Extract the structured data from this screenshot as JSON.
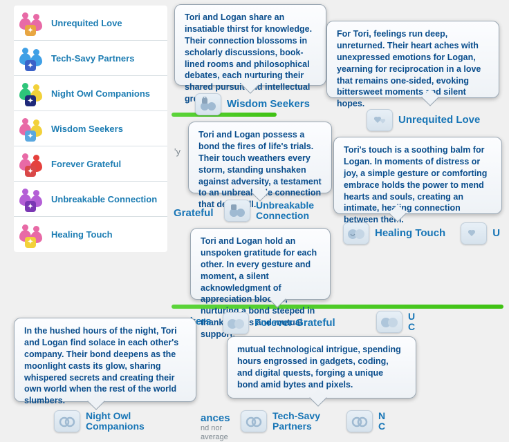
{
  "colors": {
    "link": "#1775b6",
    "tooltip_text": "#094d8c",
    "panel_border": "#9aa7b3",
    "green_bar": "#3fc213",
    "sidebar_divider": "#d8dfe3",
    "chip_bg_top": "#e8f0f7",
    "chip_bg_bot": "#d6e2ec"
  },
  "sidebar": [
    {
      "label": "Unrequited Love",
      "iconA": "#e86aa6",
      "iconB": "#e86aa6",
      "badge": "#e8a642"
    },
    {
      "label": "Tech-Savy Partners",
      "iconA": "#3fa0e6",
      "iconB": "#3fa0e6",
      "badge": "#3a61c8"
    },
    {
      "label": "Night Owl Companions",
      "iconA": "#2ec57a",
      "iconB": "#f2d13a",
      "badge": "#1f2a7a"
    },
    {
      "label": "Wisdom Seekers",
      "iconA": "#e86aa6",
      "iconB": "#f2d13a",
      "badge": "#5aa8e0"
    },
    {
      "label": "Forever Grateful",
      "iconA": "#e86aa6",
      "iconB": "#e5413d",
      "badge": "#d94848"
    },
    {
      "label": "Unbreakable Connection",
      "iconA": "#b45fd6",
      "iconB": "#b45fd6",
      "badge": "#7a37b3"
    },
    {
      "label": "Healing Touch",
      "iconA": "#e86aa6",
      "iconB": "#e86aa6",
      "badge": "#f2d13a"
    }
  ],
  "tips": {
    "wisdom": "Tori and Logan share an insatiable thirst for knowledge. Their connection blossoms in scholarly discussions, book-lined rooms and philosophical debates, each nurturing their shared pursuit and intellectual growth.",
    "unrequited": "For Tori, feelings run deep, unreturned. Their heart aches with unexpressed emotions for Logan, yearning for reciprocation in a love that remains one-sided, evoking bittersweet moments and silent hopes.",
    "unbreakable": "Tori and Logan possess a bond the fires of life's trials. Their touch weathers every storm, standing unshaken against adversity, a testament to an unbreakable connection that defies all.",
    "healing": "Tori's touch is a soothing balm for Logan. In moments of distress or joy, a simple gesture or comforting embrace holds the power to mend hearts and souls, creating an intimate, healing connection between them.",
    "grateful": "Tori and Logan hold an unspoken gratitude for each other. In every gesture and moment, a silent acknowledgment of appreciation blooms, nurturing a bond steeped in thankfulness and mutual support.",
    "nightowl": "In the hushed hours of the night, Tori and Logan find solace in each other's company. Their bond deepens as the moonlight casts its glow, sharing whispered secrets and creating their own world when the rest of the world slumbers.",
    "tech": "mutual technological intrigue, spending hours engrossed in gadgets, coding, and digital quests, forging a unique bond amid bytes and pixels."
  },
  "pills": {
    "wisdom": "Wisdom Seekers",
    "unrequited": "Unrequited Love",
    "unbreakable": "Unbreakable Connection",
    "healing": "Healing Touch",
    "grateful": "Forever Grateful",
    "nightowl": "Night Owl Companions",
    "tech": "Tech-Savy Partners"
  },
  "frags": {
    "grateful_left": "Grateful",
    "seekers_right": "Seekers",
    "u_co": "U\nCo",
    "u_right": "U",
    "n_c": "N\nC",
    "ances": "ances",
    "nd_nor": "nd nor",
    "average": "average",
    "y_stub": "'y"
  }
}
